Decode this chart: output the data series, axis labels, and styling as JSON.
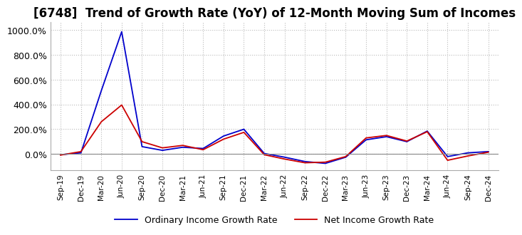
{
  "title": "[6748]  Trend of Growth Rate (YoY) of 12-Month Moving Sum of Incomes",
  "title_fontsize": 12,
  "background_color": "#ffffff",
  "grid_color": "#bbbbbb",
  "line1_color": "#0000cc",
  "line2_color": "#cc0000",
  "line1_label": "Ordinary Income Growth Rate",
  "line2_label": "Net Income Growth Rate",
  "x_labels": [
    "Sep-19",
    "Dec-19",
    "Mar-20",
    "Jun-20",
    "Sep-20",
    "Dec-20",
    "Mar-21",
    "Jun-21",
    "Sep-21",
    "Dec-21",
    "Mar-22",
    "Jun-22",
    "Sep-22",
    "Dec-22",
    "Mar-23",
    "Jun-23",
    "Sep-23",
    "Dec-23",
    "Mar-24",
    "Jun-24",
    "Sep-24",
    "Dec-24"
  ],
  "ordinary_income": [
    -5,
    10,
    510,
    985,
    60,
    30,
    55,
    45,
    145,
    200,
    5,
    -25,
    -60,
    -75,
    -25,
    115,
    140,
    100,
    185,
    -20,
    10,
    20
  ],
  "net_income": [
    -8,
    20,
    260,
    395,
    100,
    50,
    70,
    35,
    120,
    175,
    -5,
    -40,
    -70,
    -65,
    -20,
    130,
    150,
    105,
    180,
    -50,
    -15,
    15
  ],
  "ylim_min": -130,
  "ylim_max": 1060,
  "yticks": [
    0,
    200,
    400,
    600,
    800,
    1000
  ],
  "ytick_labels": [
    "0.0%",
    "200.0%",
    "400.0%",
    "600.0%",
    "800.0%",
    "1000.0%"
  ]
}
